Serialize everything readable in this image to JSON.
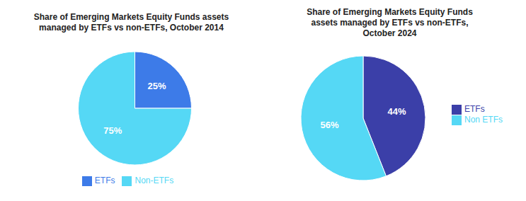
{
  "chart_data": [
    {
      "type": "pie",
      "title": "Share of Emerging Markets Equity Funds assets\nmanaged by ETFs vs non-ETFs, October 2014",
      "categories": [
        "ETFs",
        "Non-ETFs"
      ],
      "values": [
        25,
        75
      ],
      "value_labels": [
        "25%",
        "75%"
      ],
      "colors": [
        "#3d7be8",
        "#55d8f5"
      ],
      "data_labels": true,
      "legend": "bottom"
    },
    {
      "type": "pie",
      "title": "Share of Emerging Markets Equity Funds\nassets managed by ETFs vs non-ETFs,\nOctober 2024",
      "categories": [
        "ETFs",
        "Non ETFs"
      ],
      "values": [
        44,
        56
      ],
      "value_labels": [
        "44%",
        "56%"
      ],
      "colors": [
        "#3b3fa8",
        "#55d8f5"
      ],
      "data_labels": true,
      "legend": "right"
    }
  ]
}
